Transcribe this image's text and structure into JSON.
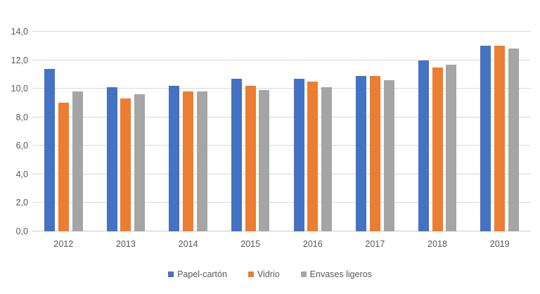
{
  "figure": {
    "background": "#ffffff"
  },
  "chart_data": {
    "type": "bar",
    "title": "",
    "xlabel": "",
    "ylabel": "",
    "categories": [
      "2012",
      "2013",
      "2014",
      "2015",
      "2016",
      "2017",
      "2018",
      "2019"
    ],
    "series": [
      {
        "name": "Papel-cartón",
        "color": "#4472C4",
        "values": [
          11.4,
          10.1,
          10.2,
          10.7,
          10.7,
          10.9,
          12.0,
          13.0
        ]
      },
      {
        "name": "Vidrio",
        "color": "#ED7D31",
        "values": [
          9.0,
          9.3,
          9.8,
          10.2,
          10.5,
          10.9,
          11.5,
          13.0
        ]
      },
      {
        "name": "Envases ligeros",
        "color": "#A5A5A5",
        "values": [
          9.8,
          9.6,
          9.8,
          9.9,
          10.1,
          10.6,
          11.7,
          12.8
        ]
      }
    ],
    "ylim": [
      0,
      14
    ],
    "ytick_step": 2,
    "ytick_labels": [
      "0,0",
      "2,0",
      "4,0",
      "6,0",
      "8,0",
      "10,0",
      "12,0",
      "14,0"
    ],
    "grid": true,
    "legend_position": "bottom",
    "colors": {
      "gridline": "#D9D9D9",
      "axis_line": "#C8C8C8",
      "tick_text": "#595959",
      "legend_text": "#595959"
    }
  }
}
